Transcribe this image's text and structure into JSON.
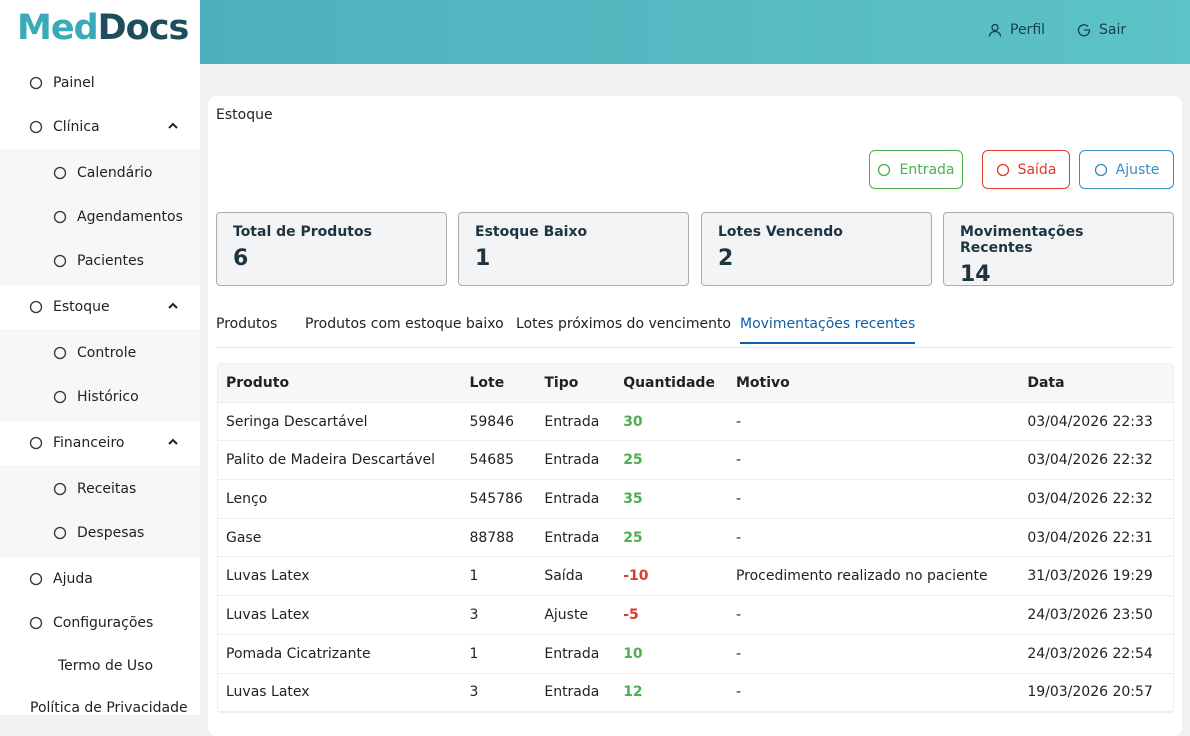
{
  "logo": {
    "first": "Med",
    "second": "Docs"
  },
  "header": {
    "profile": "Perfil",
    "logout": "Sair"
  },
  "sidebar": {
    "items": [
      {
        "label": "Painel"
      },
      {
        "label": "Clínica",
        "children": [
          "Calendário",
          "Agendamentos",
          "Pacientes"
        ]
      },
      {
        "label": "Estoque",
        "children": [
          "Controle",
          "Histórico"
        ]
      },
      {
        "label": "Financeiro",
        "children": [
          "Receitas",
          "Despesas"
        ]
      },
      {
        "label": "Ajuda"
      },
      {
        "label": "Configurações"
      }
    ],
    "links": [
      "Termo de Uso",
      "Política de Privacidade"
    ]
  },
  "page": {
    "title": "Estoque",
    "actions": [
      "Entrada",
      "Saída",
      "Ajuste"
    ],
    "stats": [
      {
        "label": "Total de Produtos",
        "value": 6
      },
      {
        "label": "Estoque Baixo",
        "value": 1
      },
      {
        "label": "Lotes Vencendo",
        "value": 2
      },
      {
        "label": "Movimentações Recentes",
        "value": 14
      }
    ],
    "tabs": [
      "Produtos",
      "Produtos com estoque baixo",
      "Lotes próximos do vencimento",
      "Movimentações recentes"
    ],
    "active_tab": 3,
    "table": {
      "columns": [
        "Produto",
        "Lote",
        "Tipo",
        "Quantidade",
        "Motivo",
        "Data"
      ],
      "rows": [
        [
          "Seringa Descartável",
          "59846",
          "Entrada",
          30,
          "-",
          "03/04/2026 22:33"
        ],
        [
          "Palito de Madeira Descartável",
          "54685",
          "Entrada",
          25,
          "-",
          "03/04/2026 22:32"
        ],
        [
          "Lenço",
          "545786",
          "Entrada",
          35,
          "-",
          "03/04/2026 22:32"
        ],
        [
          "Gase",
          "88788",
          "Entrada",
          25,
          "-",
          "03/04/2026 22:31"
        ],
        [
          "Luvas Latex",
          "1",
          "Saída",
          -10,
          "Procedimento realizado no paciente",
          "31/03/2026 19:29"
        ],
        [
          "Luvas Latex",
          "3",
          "Ajuste",
          -5,
          "-",
          "24/03/2026 23:50"
        ],
        [
          "Pomada Cicatrizante",
          "1",
          "Entrada",
          10,
          "-",
          "24/03/2026 22:54"
        ],
        [
          "Luvas Latex",
          "3",
          "Entrada",
          12,
          "-",
          "19/03/2026 20:57"
        ]
      ]
    }
  }
}
